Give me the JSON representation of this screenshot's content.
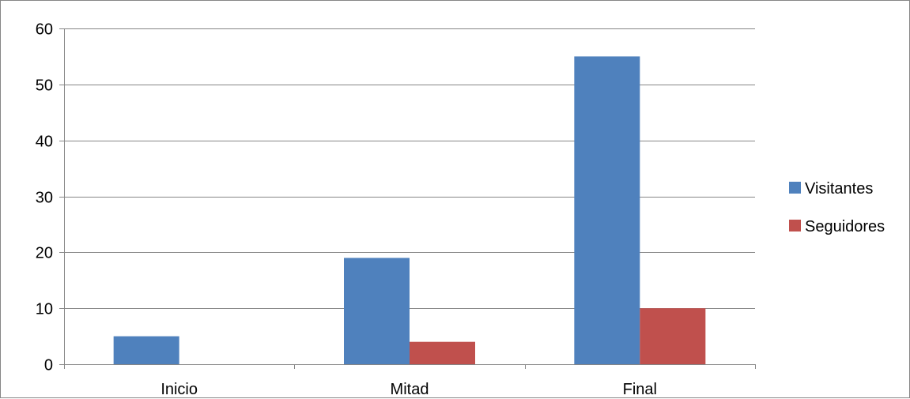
{
  "chart_data": {
    "type": "bar",
    "categories": [
      "Inicio",
      "Mitad",
      "Final"
    ],
    "series": [
      {
        "name": "Visitantes",
        "values": [
          5,
          19,
          55
        ],
        "color": "#4F81BD"
      },
      {
        "name": "Seguidores",
        "values": [
          0,
          4,
          10
        ],
        "color": "#C0504D"
      }
    ],
    "ylim": [
      0,
      60
    ],
    "yticks": [
      0,
      10,
      20,
      30,
      40,
      50,
      60
    ],
    "grid": true,
    "legend_position": "right",
    "gridline_color": "#868686",
    "axis_color": "#868686"
  }
}
